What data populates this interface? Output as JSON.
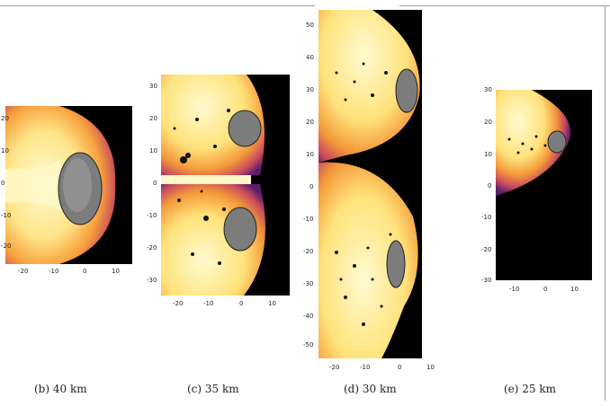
{
  "panels": [
    {
      "caption": "(b) 40 km",
      "y_ticks": [
        "20",
        "10",
        "0",
        "-10",
        "-20"
      ],
      "x_ticks": [
        "-20",
        "-10",
        "0",
        "10"
      ]
    },
    {
      "caption": "(c) 35 km",
      "y_ticks": [
        "30",
        "20",
        "10",
        "0",
        "-10",
        "-20",
        "-30"
      ],
      "x_ticks": [
        "-20",
        "-10",
        "0",
        "10"
      ]
    },
    {
      "caption": "(d) 30 km",
      "y_ticks": [
        "50",
        "40",
        "30",
        "20",
        "10",
        "0",
        "-10",
        "-20",
        "-30",
        "-40",
        "-50"
      ],
      "x_ticks": [
        "-20",
        "-10",
        "0",
        "10"
      ]
    },
    {
      "caption": "(e) 25 km",
      "y_ticks": [
        "30",
        "20",
        "10",
        "0",
        "-10",
        "-20",
        "-30"
      ],
      "x_ticks": [
        "-10",
        "0",
        "10"
      ]
    }
  ],
  "colors": {
    "background": "#000000",
    "hot": "#fff3b0",
    "mid": "#f59a3a",
    "cool": "#9b2a7a",
    "body": "#8a8a8a"
  }
}
